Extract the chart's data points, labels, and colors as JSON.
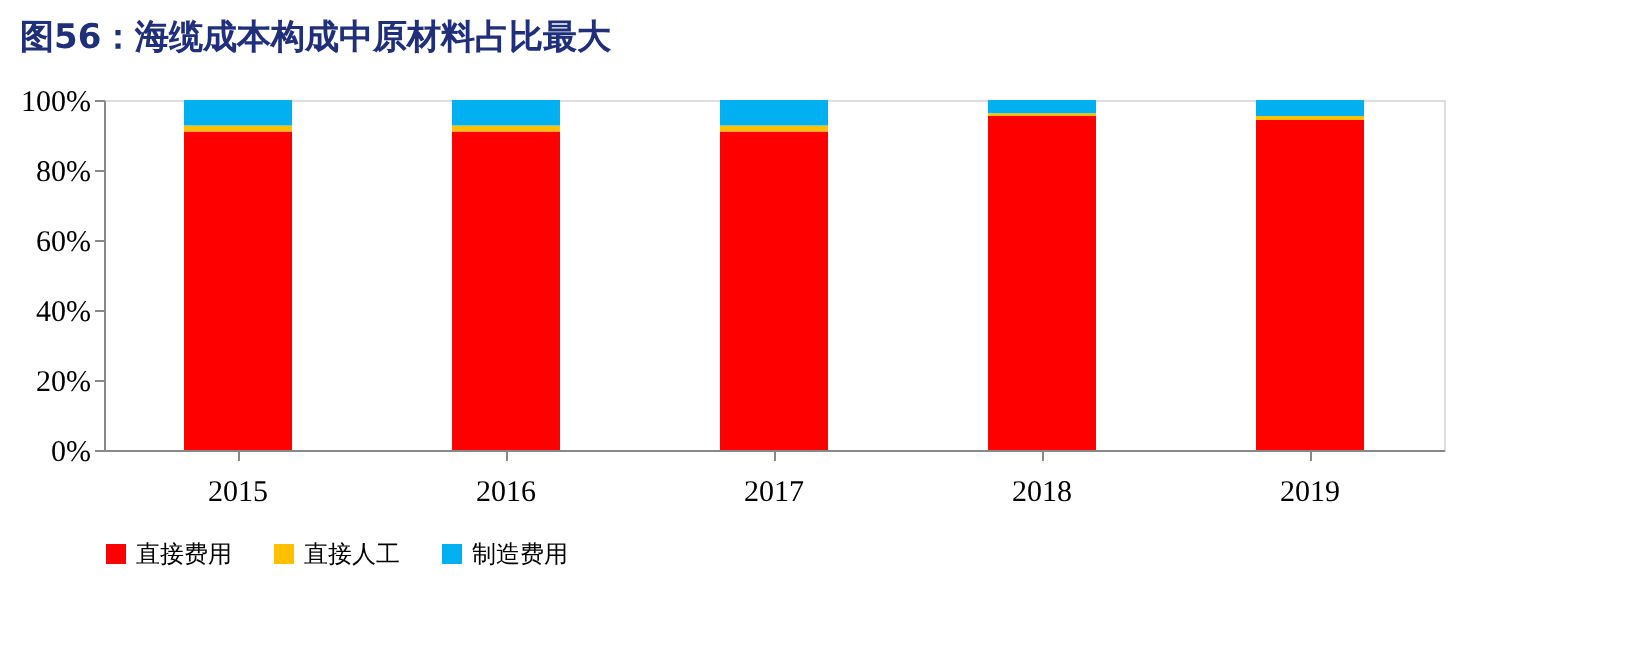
{
  "chart_data": {
    "type": "bar",
    "title": "图56：海缆成本构成中原材料占比最大",
    "stacked": true,
    "categories": [
      "2015",
      "2016",
      "2017",
      "2018",
      "2019"
    ],
    "series": [
      {
        "name": "直接费用",
        "color": "#ff0000",
        "values": [
          91.0,
          91.0,
          91.0,
          95.4,
          94.3
        ]
      },
      {
        "name": "直接人工",
        "color": "#ffc000",
        "values": [
          1.7,
          1.7,
          1.7,
          0.8,
          1.1
        ]
      },
      {
        "name": "制造费用",
        "color": "#00b0f0",
        "values": [
          7.3,
          7.3,
          7.3,
          3.8,
          4.6
        ]
      }
    ],
    "ylim": [
      0,
      100
    ],
    "yticks": [
      {
        "value": 0,
        "label": "0%"
      },
      {
        "value": 20,
        "label": "20%"
      },
      {
        "value": 40,
        "label": "40%"
      },
      {
        "value": 60,
        "label": "60%"
      },
      {
        "value": 80,
        "label": "80%"
      },
      {
        "value": 100,
        "label": "100%"
      }
    ],
    "grid": false,
    "legend": "bottom"
  }
}
